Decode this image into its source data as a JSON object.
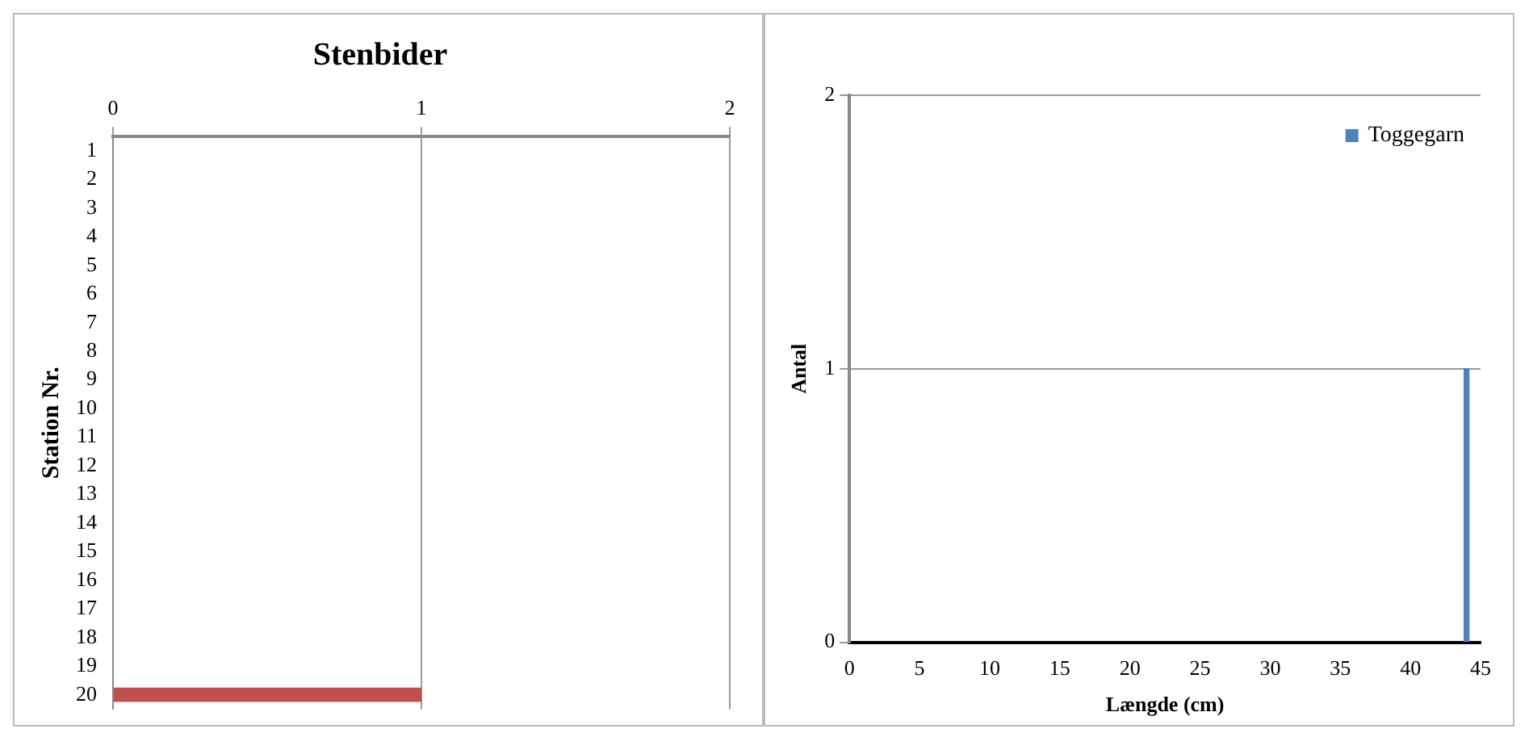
{
  "chart_data": [
    {
      "type": "bar",
      "title": "Stenbider",
      "ylabel": "Station Nr.",
      "orientation": "horizontal",
      "categories": [
        "1",
        "2",
        "3",
        "4",
        "5",
        "6",
        "7",
        "8",
        "9",
        "10",
        "11",
        "12",
        "13",
        "14",
        "15",
        "16",
        "17",
        "18",
        "19",
        "20"
      ],
      "series": [
        {
          "color": "#c0504d",
          "values": [
            0,
            0,
            0,
            0,
            0,
            0,
            0,
            0,
            0,
            0,
            0,
            0,
            0,
            0,
            0,
            0,
            0,
            0,
            0,
            1
          ]
        }
      ],
      "xlim": [
        0,
        2
      ],
      "xticks": [
        0,
        1,
        2
      ],
      "grid": "x",
      "legend": false
    },
    {
      "type": "bar",
      "xlabel": "Længde (cm)",
      "ylabel": "Antal",
      "x": [
        44
      ],
      "series": [
        {
          "name": "Toggegarn",
          "color": "#4f81bd",
          "values": [
            1
          ]
        }
      ],
      "xlim": [
        0,
        45
      ],
      "xticks": [
        0,
        5,
        10,
        15,
        20,
        25,
        30,
        35,
        40,
        45
      ],
      "ylim": [
        0,
        2
      ],
      "yticks": [
        0,
        1,
        2
      ],
      "grid": "y",
      "legend": "top right"
    }
  ]
}
